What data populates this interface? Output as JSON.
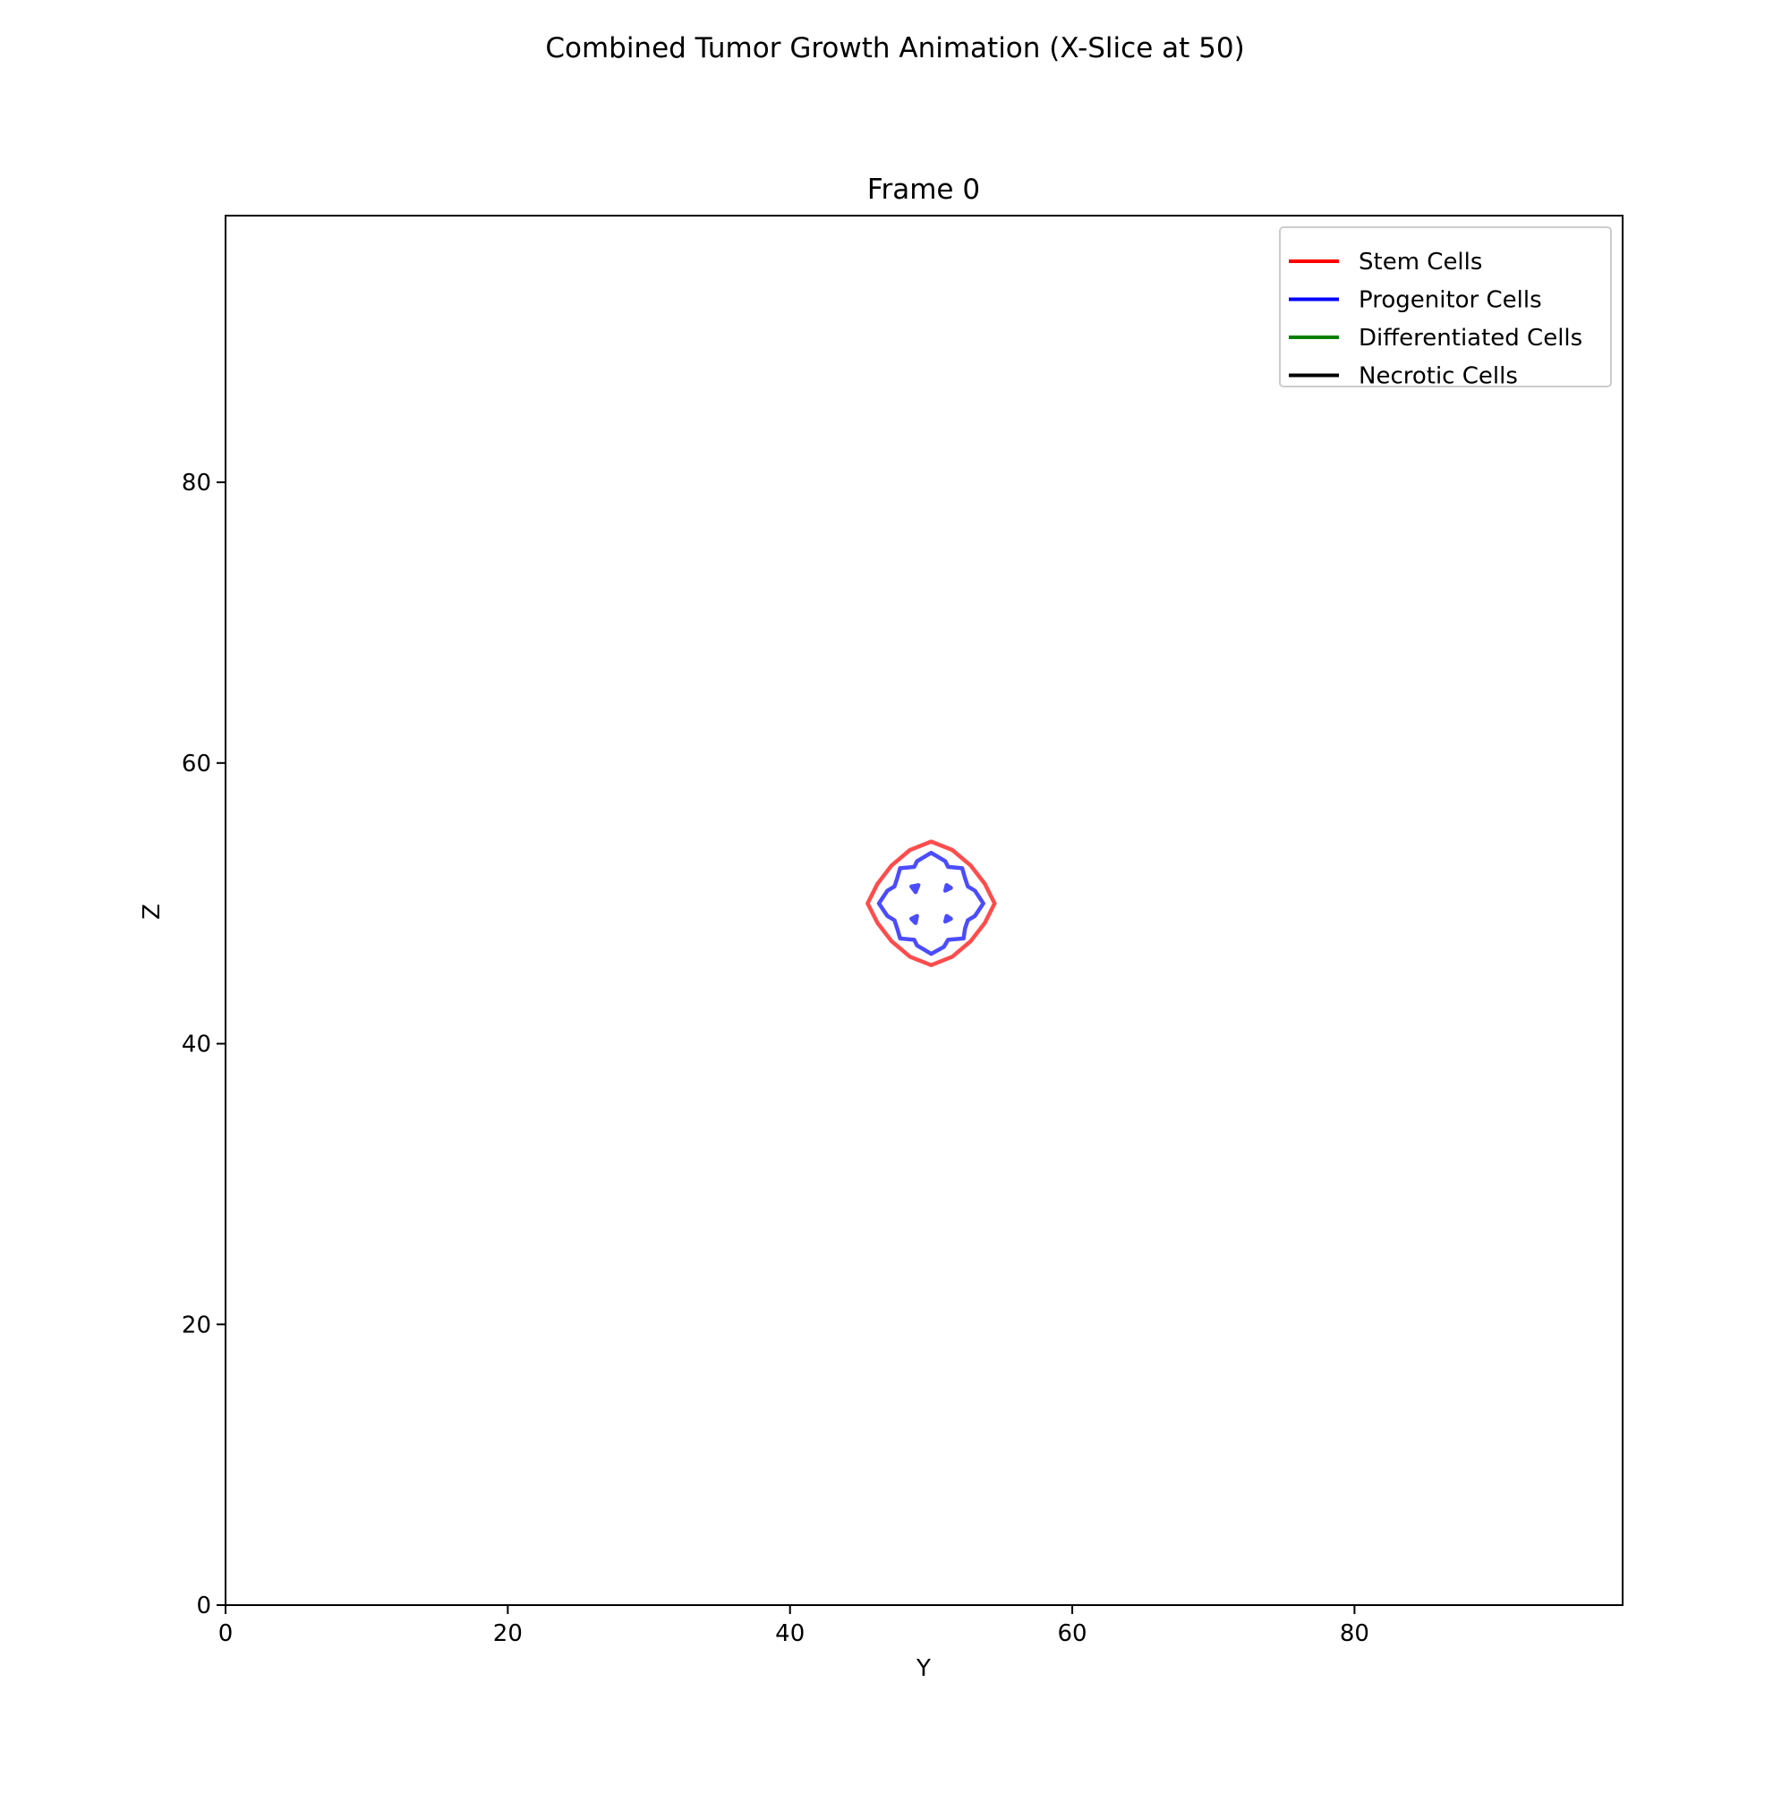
{
  "figure": {
    "suptitle": "Combined Tumor Growth Animation (X-Slice at 50)"
  },
  "chart_data": {
    "type": "contour",
    "title": "Frame 0",
    "xlabel": "Y",
    "ylabel": "Z",
    "xlim": [
      0,
      99
    ],
    "ylim": [
      0,
      99
    ],
    "xticks": [
      0,
      20,
      40,
      60,
      80
    ],
    "yticks": [
      0,
      20,
      40,
      60,
      80
    ],
    "grid": false,
    "legend_position": "upper right",
    "legend": [
      {
        "label": "Stem Cells",
        "color": "#ff0000"
      },
      {
        "label": "Progenitor Cells",
        "color": "#0000ff"
      },
      {
        "label": "Differentiated Cells",
        "color": "#008000"
      },
      {
        "label": "Necrotic Cells",
        "color": "#000000"
      }
    ],
    "series": [
      {
        "name": "Stem Cells",
        "color": "#ff0000",
        "contours": [
          [
            [
              50,
              54.4
            ],
            [
              51.5,
              53.8
            ],
            [
              52.8,
              52.7
            ],
            [
              53.8,
              51.4
            ],
            [
              54.5,
              50
            ],
            [
              53.8,
              48.6
            ],
            [
              52.8,
              47.3
            ],
            [
              51.5,
              46.2
            ],
            [
              50,
              45.6
            ],
            [
              48.5,
              46.2
            ],
            [
              47.2,
              47.3
            ],
            [
              46.2,
              48.6
            ],
            [
              45.5,
              50
            ],
            [
              46.2,
              51.4
            ],
            [
              47.2,
              52.7
            ],
            [
              48.5,
              53.8
            ],
            [
              50,
              54.4
            ]
          ]
        ]
      },
      {
        "name": "Progenitor Cells",
        "color": "#0000ff",
        "contours": [
          [
            [
              50,
              53.6
            ],
            [
              51,
              53
            ],
            [
              51.2,
              52.6
            ],
            [
              52.2,
              52.5
            ],
            [
              52.4,
              51.8
            ],
            [
              52.6,
              51.2
            ],
            [
              53.1,
              50.9
            ],
            [
              53.7,
              50
            ],
            [
              53.1,
              49.1
            ],
            [
              52.6,
              48.8
            ],
            [
              52.4,
              48.2
            ],
            [
              52.3,
              47.5
            ],
            [
              51.2,
              47.4
            ],
            [
              50.9,
              46.9
            ],
            [
              50,
              46.4
            ],
            [
              49,
              47
            ],
            [
              48.8,
              47.4
            ],
            [
              47.8,
              47.5
            ],
            [
              47.6,
              48.2
            ],
            [
              47.4,
              48.8
            ],
            [
              46.9,
              49.1
            ],
            [
              46.3,
              50
            ],
            [
              46.9,
              50.9
            ],
            [
              47.4,
              51.2
            ],
            [
              47.6,
              51.8
            ],
            [
              47.8,
              52.5
            ],
            [
              48.8,
              52.6
            ],
            [
              49,
              53
            ],
            [
              50,
              53.6
            ]
          ],
          [
            [
              48.6,
              51.2
            ],
            [
              49.1,
              51.3
            ],
            [
              48.9,
              50.8
            ],
            [
              48.6,
              51.2
            ]
          ],
          [
            [
              51.1,
              51.3
            ],
            [
              51.4,
              51.1
            ],
            [
              51.0,
              50.9
            ],
            [
              51.1,
              51.3
            ]
          ],
          [
            [
              48.6,
              48.9
            ],
            [
              49.0,
              49.1
            ],
            [
              48.9,
              48.6
            ],
            [
              48.6,
              48.9
            ]
          ],
          [
            [
              51.1,
              49.1
            ],
            [
              51.4,
              48.9
            ],
            [
              51.0,
              48.7
            ],
            [
              51.1,
              49.1
            ]
          ]
        ]
      },
      {
        "name": "Differentiated Cells",
        "color": "#008000",
        "contours": []
      },
      {
        "name": "Necrotic Cells",
        "color": "#000000",
        "contours": []
      }
    ]
  }
}
